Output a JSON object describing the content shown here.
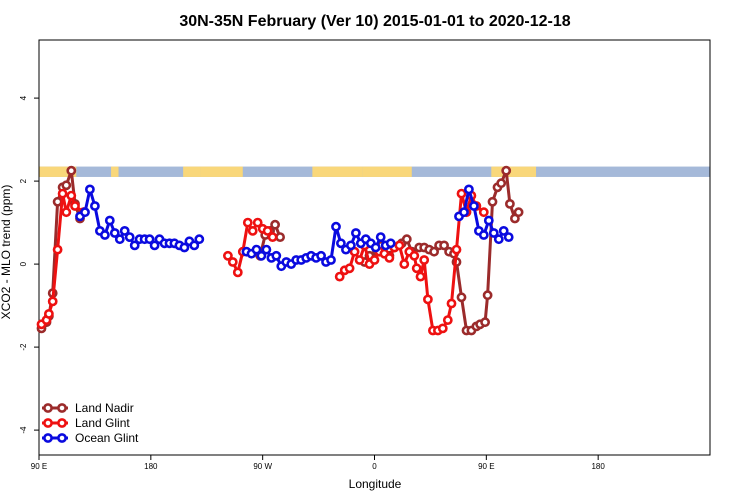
{
  "chart_data": {
    "type": "line",
    "title": "30N-35N February (Ver 10)   2015-01-01 to 2020-12-18",
    "xlabel": "Longitude",
    "ylabel": "XCO2 - MLO trend (ppm)",
    "xlim": [
      -90,
      180
    ],
    "ylim": [
      -4.6,
      5.4
    ],
    "grid": false,
    "legend_position": "bottom-left",
    "x_ticks": [
      {
        "value": -90,
        "label": "90 E"
      },
      {
        "value": -45,
        "label": "180"
      },
      {
        "value": 0,
        "label": "90 W"
      },
      {
        "value": 45,
        "label": "0"
      },
      {
        "value": 90,
        "label": "90 E"
      },
      {
        "value": 135,
        "label": "180"
      }
    ],
    "y_ticks": [
      {
        "value": -4,
        "label": "-4"
      },
      {
        "value": -2,
        "label": "-2"
      },
      {
        "value": 0,
        "label": "0"
      },
      {
        "value": 2,
        "label": "2"
      },
      {
        "value": 4,
        "label": "4"
      }
    ],
    "land_ocean_band": {
      "y_bottom": 2.1,
      "y_top": 2.35,
      "ocean_color": "#a5b9d9",
      "land_color": "#f9d77a",
      "land_ranges": [
        [
          -90,
          -75
        ],
        [
          -61,
          -58
        ],
        [
          -32,
          -25
        ],
        [
          -25,
          -8
        ],
        [
          20,
          40
        ],
        [
          40,
          60
        ],
        [
          92,
          110
        ]
      ]
    },
    "series": [
      {
        "name": "Land Nadir",
        "color": "#9b2b2b",
        "segments": [
          [
            [
              -89,
              -1.55
            ],
            [
              -87,
              -1.4
            ],
            [
              -86,
              -1.25
            ],
            [
              -84.5,
              -0.7
            ],
            [
              -82.5,
              1.5
            ],
            [
              -80.5,
              1.85
            ],
            [
              -79,
              1.9
            ],
            [
              -77,
              2.25
            ],
            [
              -75.5,
              1.45
            ],
            [
              -73.5,
              1.1
            ],
            [
              -72,
              1.25
            ]
          ],
          [
            [
              -1,
              0.2
            ],
            [
              1,
              0.7
            ],
            [
              3,
              0.8
            ],
            [
              5,
              0.95
            ],
            [
              7,
              0.65
            ]
          ],
          [
            [
              41,
              0.05
            ],
            [
              43,
              0.2
            ],
            [
              46,
              0.3
            ],
            [
              48,
              0.45
            ],
            [
              51,
              0.2
            ],
            [
              53,
              0.4
            ],
            [
              56,
              0.5
            ],
            [
              58,
              0.6
            ],
            [
              60,
              0.3
            ],
            [
              63,
              0.4
            ],
            [
              65,
              0.4
            ],
            [
              67,
              0.35
            ],
            [
              69,
              0.3
            ],
            [
              71,
              0.45
            ],
            [
              73,
              0.45
            ],
            [
              75,
              0.3
            ],
            [
              77,
              0.25
            ],
            [
              78,
              0.05
            ],
            [
              80,
              -0.8
            ],
            [
              82,
              -1.6
            ],
            [
              84,
              -1.6
            ],
            [
              86,
              -1.5
            ],
            [
              87.5,
              -1.45
            ],
            [
              89.5,
              -1.4
            ],
            [
              90.5,
              -0.75
            ],
            [
              92.5,
              1.5
            ],
            [
              94.5,
              1.85
            ],
            [
              96,
              1.95
            ],
            [
              98,
              2.25
            ],
            [
              99.5,
              1.45
            ],
            [
              101.5,
              1.1
            ],
            [
              103,
              1.25
            ]
          ]
        ]
      },
      {
        "name": "Land Glint",
        "color": "#ee1111",
        "segments": [
          [
            [
              -89,
              -1.45
            ],
            [
              -87,
              -1.35
            ],
            [
              -86,
              -1.2
            ],
            [
              -84.5,
              -0.9
            ],
            [
              -82.5,
              0.35
            ],
            [
              -80.5,
              1.7
            ],
            [
              -79,
              1.25
            ],
            [
              -77,
              1.65
            ],
            [
              -75.5,
              1.4
            ],
            [
              -72,
              1.25
            ]
          ],
          [
            [
              -14,
              0.2
            ],
            [
              -12,
              0.05
            ],
            [
              -10,
              -0.2
            ],
            [
              -8,
              0.3
            ],
            [
              -6,
              1.0
            ],
            [
              -4,
              0.8
            ],
            [
              -2,
              1.0
            ],
            [
              0,
              0.85
            ],
            [
              2,
              0.8
            ],
            [
              4,
              0.65
            ]
          ],
          [
            [
              31,
              -0.3
            ],
            [
              33,
              -0.15
            ],
            [
              35,
              -0.1
            ],
            [
              37,
              0.3
            ],
            [
              39,
              0.1
            ],
            [
              41,
              0.45
            ],
            [
              43,
              0.0
            ],
            [
              45,
              0.1
            ],
            [
              47,
              0.3
            ],
            [
              49,
              0.25
            ],
            [
              51,
              0.15
            ],
            [
              53,
              0.4
            ],
            [
              55,
              0.45
            ],
            [
              57,
              0.0
            ],
            [
              59,
              0.3
            ],
            [
              61,
              0.2
            ],
            [
              62,
              -0.1
            ],
            [
              63.5,
              -0.3
            ],
            [
              65,
              0.1
            ],
            [
              66.5,
              -0.85
            ],
            [
              68.5,
              -1.6
            ],
            [
              70.5,
              -1.6
            ],
            [
              72.5,
              -1.55
            ],
            [
              74.5,
              -1.35
            ],
            [
              76,
              -0.95
            ],
            [
              78,
              0.35
            ],
            [
              80,
              1.7
            ],
            [
              82,
              1.25
            ],
            [
              84,
              1.65
            ],
            [
              86,
              1.4
            ],
            [
              89,
              1.25
            ]
          ]
        ]
      },
      {
        "name": "Ocean Glint",
        "color": "#0a0adf",
        "segments": [
          [
            [
              -73.5,
              1.15
            ],
            [
              -71.5,
              1.25
            ],
            [
              -69.5,
              1.8
            ],
            [
              -67.5,
              1.4
            ],
            [
              -65.5,
              0.8
            ],
            [
              -63.5,
              0.7
            ],
            [
              -61.5,
              1.05
            ],
            [
              -59.5,
              0.75
            ],
            [
              -57.5,
              0.6
            ],
            [
              -55.5,
              0.8
            ],
            [
              -53.5,
              0.65
            ],
            [
              -51.5,
              0.45
            ],
            [
              -49.5,
              0.6
            ],
            [
              -47.5,
              0.6
            ],
            [
              -45.5,
              0.6
            ],
            [
              -43.5,
              0.45
            ],
            [
              -41.5,
              0.6
            ],
            [
              -39.5,
              0.5
            ],
            [
              -37.5,
              0.5
            ],
            [
              -35.5,
              0.5
            ],
            [
              -33.5,
              0.45
            ],
            [
              -31.5,
              0.4
            ],
            [
              -29.5,
              0.55
            ],
            [
              -27.5,
              0.45
            ],
            [
              -25.5,
              0.6
            ]
          ],
          [
            [
              -6.5,
              0.3
            ],
            [
              -4.5,
              0.25
            ],
            [
              -2.5,
              0.35
            ],
            [
              -0.5,
              0.2
            ],
            [
              1.5,
              0.35
            ],
            [
              3.5,
              0.15
            ],
            [
              5.5,
              0.2
            ],
            [
              7.5,
              -0.05
            ],
            [
              9.5,
              0.05
            ],
            [
              11.5,
              0.0
            ],
            [
              13.5,
              0.1
            ],
            [
              15.5,
              0.1
            ],
            [
              17.5,
              0.15
            ],
            [
              19.5,
              0.2
            ],
            [
              21.5,
              0.15
            ],
            [
              23.5,
              0.2
            ],
            [
              25.5,
              0.05
            ],
            [
              27.5,
              0.1
            ],
            [
              29.5,
              0.9
            ],
            [
              31.5,
              0.5
            ],
            [
              33.5,
              0.35
            ],
            [
              35.5,
              0.45
            ],
            [
              37.5,
              0.75
            ],
            [
              39.5,
              0.5
            ],
            [
              41.5,
              0.6
            ],
            [
              43.5,
              0.5
            ],
            [
              45.5,
              0.4
            ],
            [
              47.5,
              0.65
            ],
            [
              49.5,
              0.45
            ],
            [
              51.5,
              0.5
            ]
          ],
          [
            [
              79,
              1.15
            ],
            [
              81,
              1.25
            ],
            [
              83,
              1.8
            ],
            [
              85,
              1.4
            ],
            [
              87,
              0.8
            ],
            [
              89,
              0.7
            ],
            [
              91,
              1.05
            ],
            [
              93,
              0.75
            ],
            [
              95,
              0.6
            ],
            [
              97,
              0.8
            ],
            [
              99,
              0.65
            ]
          ]
        ]
      }
    ]
  }
}
